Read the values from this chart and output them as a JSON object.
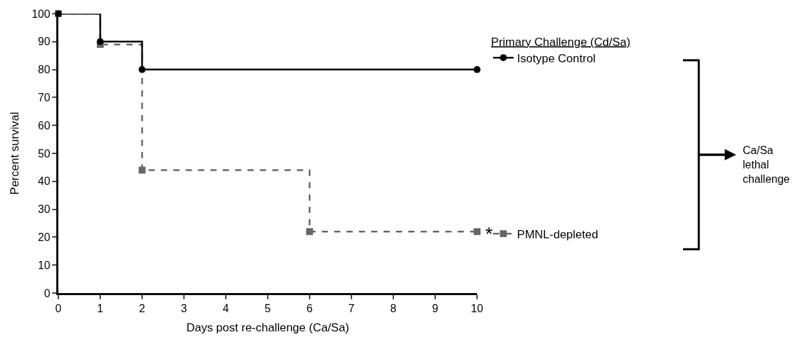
{
  "chart_data": {
    "type": "step",
    "xlabel": "Days post re-challenge (Ca/Sa)",
    "ylabel": "Percent survival",
    "legend_title": "Primary Challenge (Cd/Sa)",
    "legend": "right",
    "xlim": [
      0,
      10
    ],
    "xticks": [
      0,
      1,
      2,
      3,
      4,
      5,
      6,
      7,
      8,
      9,
      10
    ],
    "ylim": [
      0,
      100
    ],
    "yticks": [
      0,
      10,
      20,
      30,
      40,
      50,
      60,
      70,
      80,
      90,
      100
    ],
    "series": [
      {
        "name": "Isotype Control",
        "color": "#000000",
        "x": [
          0,
          1,
          2,
          10
        ],
        "values": [
          100,
          90,
          80,
          80
        ],
        "marker": "circle",
        "line_style": "solid"
      },
      {
        "name": "PMNL-depleted",
        "color": "#666666",
        "x": [
          0,
          1,
          2,
          6,
          10
        ],
        "values": [
          100,
          89,
          44,
          22,
          22
        ],
        "marker": "square",
        "line_style": "dashed"
      }
    ],
    "annotations": [
      "*",
      "Ca/Sa\nlethal\nchallenge"
    ]
  }
}
